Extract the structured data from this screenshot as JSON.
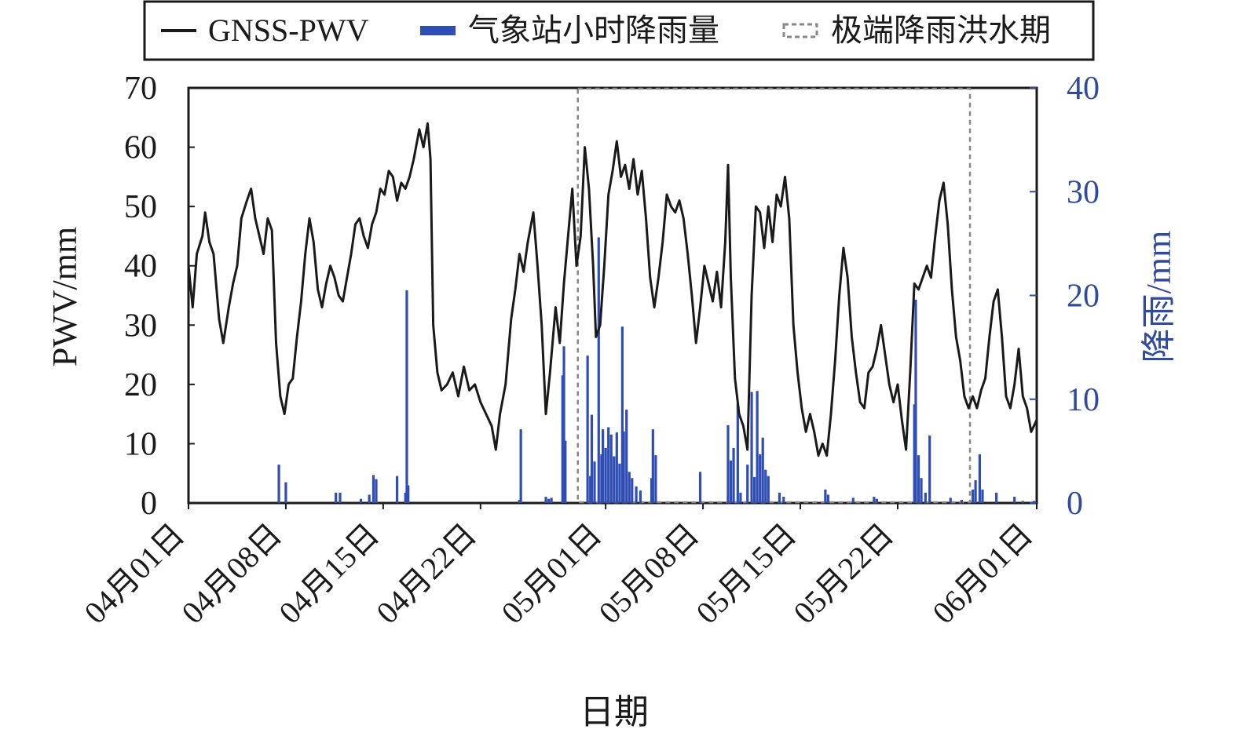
{
  "chart_data": {
    "type": "line",
    "title": "",
    "xlabel": "日期",
    "ylabel": "PWV/mm",
    "ylabel_right": "降雨/mm",
    "ylim": [
      0,
      70
    ],
    "ylim_right": [
      0,
      40
    ],
    "yticks": [
      0,
      10,
      20,
      30,
      40,
      50,
      60,
      70
    ],
    "yticks_right": [
      0,
      10,
      20,
      30,
      40
    ],
    "x_range_days": [
      0,
      61
    ],
    "xticks": [
      {
        "day": 0,
        "label": "04月01日"
      },
      {
        "day": 7,
        "label": "04月08日"
      },
      {
        "day": 14,
        "label": "04月15日"
      },
      {
        "day": 21,
        "label": "04月22日"
      },
      {
        "day": 30,
        "label": "05月01日"
      },
      {
        "day": 37,
        "label": "05月08日"
      },
      {
        "day": 44,
        "label": "05月15日"
      },
      {
        "day": 51,
        "label": "05月22日"
      },
      {
        "day": 61,
        "label": "06月01日"
      }
    ],
    "legend": {
      "placement": "top",
      "items": [
        {
          "label": "GNSS-PWV",
          "style": "line",
          "color": "#1a1a1a"
        },
        {
          "label": "气象站小时降雨量",
          "style": "bar",
          "color": "#2f4db3"
        },
        {
          "label": "极端降雨洪水期",
          "style": "dashed-box",
          "color": "#888888"
        }
      ]
    },
    "flood_period_days": [
      28.0,
      56.2
    ],
    "series": [
      {
        "name": "GNSS-PWV",
        "axis": "left",
        "color": "#1a1a1a",
        "points": [
          [
            0.0,
            40
          ],
          [
            0.3,
            33
          ],
          [
            0.6,
            42
          ],
          [
            1.0,
            45
          ],
          [
            1.2,
            49
          ],
          [
            1.5,
            44
          ],
          [
            1.8,
            42
          ],
          [
            2.2,
            31
          ],
          [
            2.5,
            27
          ],
          [
            2.9,
            33
          ],
          [
            3.2,
            37
          ],
          [
            3.5,
            40
          ],
          [
            3.8,
            48
          ],
          [
            4.2,
            51
          ],
          [
            4.5,
            53
          ],
          [
            4.8,
            48
          ],
          [
            5.1,
            45
          ],
          [
            5.4,
            42
          ],
          [
            5.7,
            48
          ],
          [
            6.0,
            46
          ],
          [
            6.3,
            27
          ],
          [
            6.6,
            18
          ],
          [
            6.9,
            15
          ],
          [
            7.2,
            20
          ],
          [
            7.5,
            21
          ],
          [
            7.8,
            28
          ],
          [
            8.1,
            34
          ],
          [
            8.4,
            42
          ],
          [
            8.7,
            48
          ],
          [
            9.0,
            44
          ],
          [
            9.3,
            36
          ],
          [
            9.6,
            33
          ],
          [
            9.9,
            37
          ],
          [
            10.2,
            40
          ],
          [
            10.5,
            38
          ],
          [
            10.8,
            35
          ],
          [
            11.1,
            34
          ],
          [
            11.4,
            38
          ],
          [
            11.7,
            42
          ],
          [
            12.0,
            47
          ],
          [
            12.3,
            48
          ],
          [
            12.6,
            45
          ],
          [
            12.9,
            43
          ],
          [
            13.2,
            47
          ],
          [
            13.5,
            49
          ],
          [
            13.8,
            53
          ],
          [
            14.1,
            52
          ],
          [
            14.4,
            56
          ],
          [
            14.7,
            55
          ],
          [
            15.0,
            51
          ],
          [
            15.3,
            54
          ],
          [
            15.6,
            53
          ],
          [
            15.9,
            55
          ],
          [
            16.2,
            58
          ],
          [
            16.6,
            63
          ],
          [
            16.9,
            60
          ],
          [
            17.2,
            64
          ],
          [
            17.4,
            58
          ],
          [
            17.6,
            30
          ],
          [
            17.9,
            22
          ],
          [
            18.2,
            19
          ],
          [
            18.6,
            20
          ],
          [
            19.0,
            22
          ],
          [
            19.4,
            18
          ],
          [
            19.8,
            23
          ],
          [
            20.2,
            19
          ],
          [
            20.6,
            20
          ],
          [
            21.0,
            17
          ],
          [
            21.4,
            15
          ],
          [
            21.8,
            13
          ],
          [
            22.1,
            9
          ],
          [
            22.4,
            15
          ],
          [
            22.8,
            20
          ],
          [
            23.2,
            31
          ],
          [
            23.5,
            36
          ],
          [
            23.8,
            42
          ],
          [
            24.1,
            39
          ],
          [
            24.4,
            44
          ],
          [
            24.8,
            49
          ],
          [
            25.1,
            40
          ],
          [
            25.4,
            30
          ],
          [
            25.7,
            15
          ],
          [
            26.0,
            22
          ],
          [
            26.4,
            33
          ],
          [
            26.7,
            27
          ],
          [
            27.0,
            37
          ],
          [
            27.3,
            45
          ],
          [
            27.6,
            53
          ],
          [
            27.9,
            40
          ],
          [
            28.2,
            45
          ],
          [
            28.5,
            60
          ],
          [
            28.8,
            53
          ],
          [
            29.1,
            40
          ],
          [
            29.3,
            28
          ],
          [
            29.6,
            30
          ],
          [
            29.9,
            40
          ],
          [
            30.2,
            52
          ],
          [
            30.5,
            56
          ],
          [
            30.8,
            61
          ],
          [
            31.1,
            55
          ],
          [
            31.4,
            57
          ],
          [
            31.7,
            53
          ],
          [
            32.0,
            58
          ],
          [
            32.3,
            52
          ],
          [
            32.6,
            56
          ],
          [
            32.9,
            48
          ],
          [
            33.2,
            38
          ],
          [
            33.5,
            33
          ],
          [
            33.8,
            38
          ],
          [
            34.1,
            44
          ],
          [
            34.4,
            52
          ],
          [
            34.7,
            50
          ],
          [
            35.0,
            49
          ],
          [
            35.3,
            51
          ],
          [
            35.6,
            48
          ],
          [
            35.9,
            42
          ],
          [
            36.2,
            35
          ],
          [
            36.5,
            27
          ],
          [
            36.8,
            33
          ],
          [
            37.1,
            40
          ],
          [
            37.4,
            37
          ],
          [
            37.7,
            34
          ],
          [
            38.0,
            39
          ],
          [
            38.3,
            33
          ],
          [
            38.6,
            44
          ],
          [
            38.8,
            57
          ],
          [
            39.0,
            38
          ],
          [
            39.3,
            21
          ],
          [
            39.6,
            15
          ],
          [
            39.9,
            13
          ],
          [
            40.2,
            9
          ],
          [
            40.5,
            35
          ],
          [
            40.8,
            50
          ],
          [
            41.1,
            49
          ],
          [
            41.4,
            43
          ],
          [
            41.7,
            50
          ],
          [
            42.0,
            44
          ],
          [
            42.3,
            52
          ],
          [
            42.6,
            50
          ],
          [
            42.9,
            55
          ],
          [
            43.2,
            48
          ],
          [
            43.5,
            30
          ],
          [
            43.8,
            22
          ],
          [
            44.1,
            16
          ],
          [
            44.4,
            12
          ],
          [
            44.7,
            15
          ],
          [
            45.0,
            12
          ],
          [
            45.3,
            8
          ],
          [
            45.6,
            10
          ],
          [
            45.9,
            8
          ],
          [
            46.2,
            15
          ],
          [
            46.5,
            24
          ],
          [
            46.8,
            35
          ],
          [
            47.1,
            43
          ],
          [
            47.4,
            38
          ],
          [
            47.7,
            28
          ],
          [
            48.0,
            22
          ],
          [
            48.3,
            17
          ],
          [
            48.6,
            16
          ],
          [
            48.9,
            22
          ],
          [
            49.2,
            23
          ],
          [
            49.5,
            26
          ],
          [
            49.8,
            30
          ],
          [
            50.1,
            25
          ],
          [
            50.4,
            20
          ],
          [
            50.7,
            17
          ],
          [
            51.0,
            20
          ],
          [
            51.3,
            14
          ],
          [
            51.6,
            9
          ],
          [
            51.9,
            22
          ],
          [
            52.2,
            37
          ],
          [
            52.5,
            36
          ],
          [
            52.8,
            38
          ],
          [
            53.1,
            40
          ],
          [
            53.4,
            38
          ],
          [
            53.7,
            45
          ],
          [
            54.0,
            51
          ],
          [
            54.3,
            54
          ],
          [
            54.6,
            47
          ],
          [
            54.9,
            36
          ],
          [
            55.2,
            28
          ],
          [
            55.5,
            24
          ],
          [
            55.8,
            18
          ],
          [
            56.1,
            16
          ],
          [
            56.4,
            18
          ],
          [
            56.7,
            16
          ],
          [
            57.0,
            19
          ],
          [
            57.3,
            21
          ],
          [
            57.6,
            28
          ],
          [
            57.9,
            34
          ],
          [
            58.2,
            36
          ],
          [
            58.5,
            28
          ],
          [
            58.8,
            18
          ],
          [
            59.1,
            16
          ],
          [
            59.4,
            20
          ],
          [
            59.7,
            26
          ],
          [
            60.0,
            18
          ],
          [
            60.3,
            16
          ],
          [
            60.6,
            12
          ],
          [
            61.0,
            14
          ]
        ]
      },
      {
        "name": "气象站小时降雨量",
        "axis": "right",
        "color": "#2f4db3",
        "points": [
          [
            6.5,
            3.7
          ],
          [
            7.0,
            2.0
          ],
          [
            10.6,
            1.0
          ],
          [
            10.9,
            1.0
          ],
          [
            12.4,
            0.4
          ],
          [
            13.0,
            0.8
          ],
          [
            13.3,
            2.7
          ],
          [
            13.5,
            2.3
          ],
          [
            15.0,
            2.6
          ],
          [
            15.6,
            1.0
          ],
          [
            15.7,
            20.5
          ],
          [
            15.8,
            1.7
          ],
          [
            23.8,
            0.3
          ],
          [
            23.9,
            7.1
          ],
          [
            25.7,
            0.6
          ],
          [
            25.9,
            0.4
          ],
          [
            26.1,
            0.5
          ],
          [
            26.9,
            12.3
          ],
          [
            27.0,
            15.1
          ],
          [
            27.1,
            6.0
          ],
          [
            28.7,
            14.2
          ],
          [
            28.9,
            2.6
          ],
          [
            29.0,
            8.5
          ],
          [
            29.2,
            4.0
          ],
          [
            29.5,
            25.6
          ],
          [
            29.7,
            4.7
          ],
          [
            29.8,
            7.1
          ],
          [
            30.0,
            5.3
          ],
          [
            30.2,
            7.3
          ],
          [
            30.4,
            6.6
          ],
          [
            30.6,
            4.5
          ],
          [
            30.8,
            6.8
          ],
          [
            31.0,
            3.8
          ],
          [
            31.2,
            17.0
          ],
          [
            31.3,
            6.9
          ],
          [
            31.5,
            9.0
          ],
          [
            31.7,
            3.0
          ],
          [
            31.9,
            2.4
          ],
          [
            32.2,
            1.6
          ],
          [
            32.5,
            1.2
          ],
          [
            33.3,
            2.4
          ],
          [
            33.4,
            7.1
          ],
          [
            33.6,
            4.6
          ],
          [
            36.8,
            3.0
          ],
          [
            38.8,
            7.5
          ],
          [
            39.0,
            4.1
          ],
          [
            39.2,
            5.3
          ],
          [
            39.5,
            9.6
          ],
          [
            39.7,
            1.0
          ],
          [
            40.2,
            3.7
          ],
          [
            40.5,
            10.7
          ],
          [
            40.7,
            2.5
          ],
          [
            40.9,
            10.8
          ],
          [
            41.1,
            4.7
          ],
          [
            41.3,
            6.3
          ],
          [
            41.5,
            3.2
          ],
          [
            41.7,
            2.6
          ],
          [
            42.5,
            1.0
          ],
          [
            42.8,
            0.6
          ],
          [
            45.8,
            1.3
          ],
          [
            46.0,
            0.8
          ],
          [
            47.8,
            0.5
          ],
          [
            49.3,
            0.6
          ],
          [
            49.5,
            0.4
          ],
          [
            52.2,
            9.5
          ],
          [
            52.3,
            19.6
          ],
          [
            52.5,
            4.6
          ],
          [
            52.7,
            2.4
          ],
          [
            53.0,
            1.0
          ],
          [
            53.3,
            6.5
          ],
          [
            54.8,
            0.5
          ],
          [
            55.6,
            0.3
          ],
          [
            56.4,
            1.3
          ],
          [
            56.6,
            2.2
          ],
          [
            56.9,
            4.7
          ],
          [
            57.1,
            1.3
          ],
          [
            58.1,
            1.0
          ],
          [
            59.4,
            0.6
          ],
          [
            60.0,
            0.2
          ],
          [
            60.8,
            0.2
          ]
        ]
      }
    ]
  }
}
